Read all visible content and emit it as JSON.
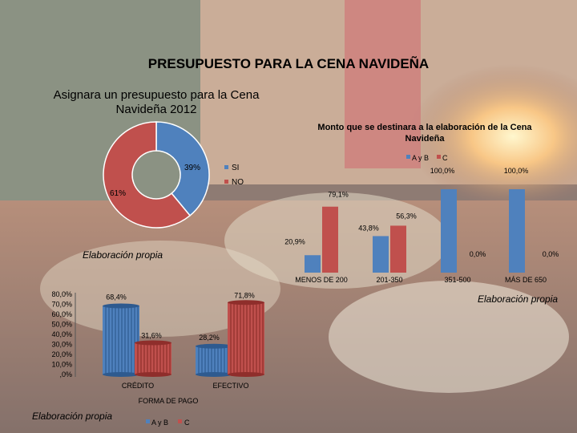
{
  "page": {
    "title": "PRESUPUESTO PARA LA CENA NAVIDEÑA",
    "subtitle": "Asignara un presupuesto para la Cena Navideña 2012",
    "colors": {
      "series_a": "#4f81bd",
      "series_b": "#c0504d"
    }
  },
  "chart_data": [
    {
      "type": "pie",
      "variant": "doughnut",
      "labels": [
        "SI",
        "NO"
      ],
      "values": [
        39,
        61
      ],
      "value_labels": [
        "39%",
        "61%"
      ],
      "legend": [
        "SI",
        "NO"
      ],
      "legend_position": "right",
      "source": "Elaboración propia",
      "colors": [
        "#4f81bd",
        "#c0504d"
      ]
    },
    {
      "type": "bar",
      "title": "Monto que se destinara a la elaboración de la Cena Navideña",
      "categories": [
        "MENOS DE 200",
        "201-350",
        "351-500",
        "MÁS DE 650"
      ],
      "series": [
        {
          "name": "A y B",
          "values": [
            20.9,
            43.8,
            100.0,
            100.0
          ],
          "labels": [
            "20,9%",
            "43,8%",
            "100,0%",
            "100,0%"
          ]
        },
        {
          "name": "C",
          "values": [
            79.1,
            56.3,
            0.0,
            0.0
          ],
          "labels": [
            "79,1%",
            "56,3%",
            "0,0%",
            "0,0%"
          ]
        }
      ],
      "legend_position": "top-right",
      "ylim": [
        0,
        100
      ],
      "source": "Elaboración propia"
    },
    {
      "type": "bar",
      "variant": "3d-cylinder",
      "xlabel": "FORMA DE PAGO",
      "categories": [
        "CRÉDITO",
        "EFECTIVO"
      ],
      "series": [
        {
          "name": "A y B",
          "values": [
            68.4,
            28.2
          ],
          "labels": [
            "68,4%",
            "28,2%"
          ]
        },
        {
          "name": "C",
          "values": [
            31.6,
            71.8
          ],
          "labels": [
            "31,6%",
            "71,8%"
          ]
        }
      ],
      "yticks": [
        "80,0%",
        "70,0%",
        "60,0%",
        "50,0%",
        "40,0%",
        "30,0%",
        "20,0%",
        "10,0%",
        ",0%"
      ],
      "ylim": [
        0,
        80
      ],
      "legend_position": "bottom",
      "source": "Elaboración propia"
    }
  ]
}
